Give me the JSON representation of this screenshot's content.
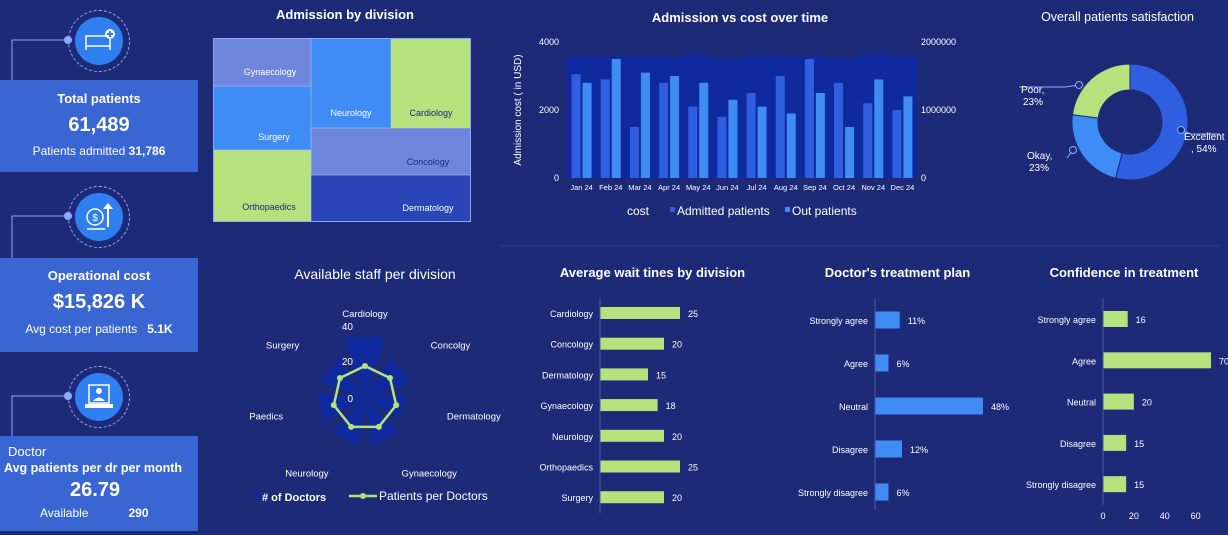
{
  "kpis": {
    "total_patients": {
      "title": "Total patients",
      "value": "61,489",
      "sub_label": "Patients admitted",
      "sub_value": "31,786"
    },
    "operational_cost": {
      "title": "Operational cost",
      "value": "$15,826 K",
      "sub_label": "Avg cost per patients",
      "sub_value": "5.1K"
    },
    "doctor": {
      "heading": "Doctor",
      "title": "Avg patients per dr per month",
      "value": "26.79",
      "sub_label": "Available",
      "sub_value": "290"
    }
  },
  "icons": [
    "hospital-bed-icon",
    "money-growth-icon",
    "doctor-laptop-icon"
  ],
  "colors": {
    "background": "#1c2a78",
    "accent": "#3a66d4",
    "green": "#b5e27c",
    "blue_light": "#3f8cf4",
    "blue_mid": "#2f5fe0",
    "blue_dark": "#0e2a9e",
    "treemap_lavender": "#7a8ede"
  },
  "chart_data": [
    {
      "type": "treemap",
      "title": "Admission  by division",
      "categories": [
        "Gynaecology",
        "Neurology",
        "Cardiology",
        "Surgery",
        "Orthopaedics",
        "Concology",
        "Dermatology"
      ]
    },
    {
      "type": "bar",
      "title": "Admission   vs cost over time",
      "categories": [
        "Jan 24",
        "Feb 24",
        "Mar 24",
        "Apr 24",
        "May 24",
        "Jun 24",
        "Jul 24",
        "Aug 24",
        "Sep 24",
        "Oct 24",
        "Nov 24",
        "Dec 24"
      ],
      "ylabel": "Admission cost ( in USD)",
      "ylim": [
        0,
        4000
      ],
      "yticks": [
        "0",
        "2000",
        "4000"
      ],
      "y2lim": [
        0,
        2000000
      ],
      "y2ticks": [
        "0",
        "1000000",
        "2000000"
      ],
      "legend": [
        "cost",
        "Admitted patients",
        "Out patients"
      ],
      "series": [
        {
          "name": "cost",
          "type": "area",
          "axis": "right",
          "values": [
            1780000,
            1780000,
            1800000,
            1770000,
            1820000,
            1750000,
            1810000,
            1790000,
            1800000,
            1760000,
            1830000,
            1800000
          ]
        },
        {
          "name": "Admitted patients",
          "values": [
            3050,
            2900,
            1500,
            2800,
            2100,
            1800,
            2500,
            3000,
            3500,
            2800,
            2200,
            2000
          ]
        },
        {
          "name": "Out patients",
          "values": [
            2800,
            3500,
            3100,
            3000,
            2800,
            2300,
            2100,
            1900,
            2500,
            1500,
            2900,
            2400
          ]
        }
      ]
    },
    {
      "type": "pie",
      "title": "Overall patients satisfaction",
      "categories": [
        "Excellent",
        "Okay,",
        "Poor,"
      ],
      "values": [
        54,
        23,
        23
      ],
      "value_labels": [
        ", 54%",
        "23%",
        "23%"
      ]
    },
    {
      "type": "radar",
      "title": "Available  staff per division",
      "categories": [
        "Cardiology",
        "Concolgy",
        "Dermatology",
        "Gynaecology",
        "Neurology",
        "Paedics",
        "Surgery"
      ],
      "rticks": [
        "0",
        "20",
        "40"
      ],
      "rlim": [
        0,
        40
      ],
      "legend": [
        "# of Doctors",
        "Patients per Doctors"
      ],
      "series": [
        {
          "name": "# of Doctors",
          "values": [
            40,
            30,
            25,
            30,
            30,
            30,
            30
          ]
        },
        {
          "name": "Patients per Doctors",
          "values": [
            20,
            20,
            20,
            20,
            20,
            20,
            20
          ]
        }
      ]
    },
    {
      "type": "bar",
      "orientation": "horizontal",
      "title": "Average wait tines by division",
      "categories": [
        "Cardiology",
        "Concology",
        "Dermatology",
        "Gynaecology",
        "Neurology",
        "Orthopaedics",
        "Surgery"
      ],
      "values": [
        25,
        20,
        15,
        18,
        20,
        25,
        20
      ]
    },
    {
      "type": "bar",
      "orientation": "horizontal",
      "title": "Doctor's  treatment plan",
      "categories": [
        "Strongly agree",
        "Agree",
        "Neutral",
        "Disagree",
        "Strongly disagree"
      ],
      "values": [
        11,
        6,
        48,
        12,
        6
      ],
      "value_labels": [
        "11%",
        "6%",
        "48%",
        "12%",
        "6%"
      ]
    },
    {
      "type": "bar",
      "orientation": "horizontal",
      "title": "Confidence in treatment",
      "categories": [
        "Strongly agree",
        "Agree",
        "Neutral",
        "Disagree",
        "Strongly disagree"
      ],
      "values": [
        16,
        70,
        20,
        15,
        15
      ],
      "xlim": [
        0,
        70
      ],
      "xticks": [
        "0",
        "20",
        "40",
        "60"
      ]
    }
  ]
}
